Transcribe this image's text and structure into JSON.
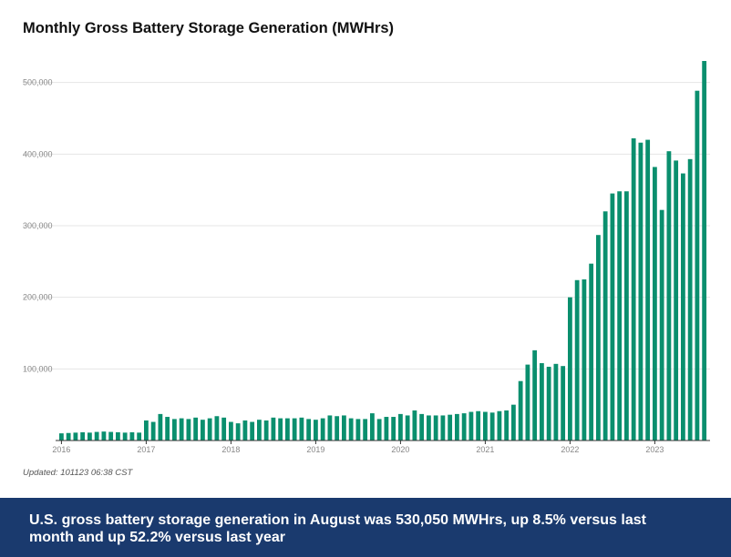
{
  "title": "Monthly Gross Battery Storage Generation (MWHrs)",
  "updated": "Updated: 101123 06:38 CST",
  "caption": "U.S. gross battery storage generation in August was 530,050 MWHrs, up 8.5% versus last month and up 52.2% versus last year",
  "colors": {
    "bar": "#0a8f6e",
    "gridline": "#e6e6e6",
    "axis": "#333333",
    "caption_bg": "#1a3a6e"
  },
  "chart_data": {
    "type": "bar",
    "title": "Monthly Gross Battery Storage Generation (MWHrs)",
    "xlabel": "",
    "ylabel": "",
    "ylim": [
      0,
      530050
    ],
    "grid": true,
    "legend": "none",
    "x_tick_labels": [
      "2016",
      "2017",
      "2018",
      "2019",
      "2020",
      "2021",
      "2022",
      "2023"
    ],
    "y_tick_labels": [
      "100,000",
      "200,000",
      "300,000",
      "400,000",
      "500,000"
    ],
    "y_tick_values": [
      100000,
      200000,
      300000,
      400000,
      500000
    ],
    "categories": [
      "2016-01",
      "2016-02",
      "2016-03",
      "2016-04",
      "2016-05",
      "2016-06",
      "2016-07",
      "2016-08",
      "2016-09",
      "2016-10",
      "2016-11",
      "2016-12",
      "2017-01",
      "2017-02",
      "2017-03",
      "2017-04",
      "2017-05",
      "2017-06",
      "2017-07",
      "2017-08",
      "2017-09",
      "2017-10",
      "2017-11",
      "2017-12",
      "2018-01",
      "2018-02",
      "2018-03",
      "2018-04",
      "2018-05",
      "2018-06",
      "2018-07",
      "2018-08",
      "2018-09",
      "2018-10",
      "2018-11",
      "2018-12",
      "2019-01",
      "2019-02",
      "2019-03",
      "2019-04",
      "2019-05",
      "2019-06",
      "2019-07",
      "2019-08",
      "2019-09",
      "2019-10",
      "2019-11",
      "2019-12",
      "2020-01",
      "2020-02",
      "2020-03",
      "2020-04",
      "2020-05",
      "2020-06",
      "2020-07",
      "2020-08",
      "2020-09",
      "2020-10",
      "2020-11",
      "2020-12",
      "2021-01",
      "2021-02",
      "2021-03",
      "2021-04",
      "2021-05",
      "2021-06",
      "2021-07",
      "2021-08",
      "2021-09",
      "2021-10",
      "2021-11",
      "2021-12",
      "2022-01",
      "2022-02",
      "2022-03",
      "2022-04",
      "2022-05",
      "2022-06",
      "2022-07",
      "2022-08",
      "2022-09",
      "2022-10",
      "2022-11",
      "2022-12",
      "2023-01",
      "2023-02",
      "2023-03",
      "2023-04",
      "2023-05",
      "2023-06",
      "2023-07",
      "2023-08"
    ],
    "values": [
      10000,
      10500,
      11000,
      11500,
      11000,
      12000,
      12500,
      12000,
      11500,
      11000,
      11500,
      11000,
      28000,
      26000,
      37000,
      33000,
      30000,
      31000,
      30000,
      32000,
      29000,
      31000,
      34000,
      32000,
      26000,
      24000,
      28000,
      26000,
      29000,
      28000,
      32000,
      31000,
      31000,
      31000,
      32000,
      30000,
      29000,
      31000,
      35000,
      34000,
      35000,
      31000,
      30000,
      30000,
      38000,
      30000,
      33000,
      33000,
      37000,
      35000,
      42000,
      37000,
      35000,
      35000,
      35000,
      36000,
      37000,
      38000,
      40000,
      41000,
      40000,
      39000,
      41000,
      42000,
      50000,
      83000,
      106000,
      126000,
      108000,
      103000,
      107000,
      104000,
      200000,
      224000,
      225000,
      247000,
      287000,
      320000,
      345000,
      348000,
      348000,
      422000,
      416000,
      420000,
      382000,
      322000,
      404000,
      391000,
      373000,
      393000,
      488500,
      530050
    ]
  }
}
